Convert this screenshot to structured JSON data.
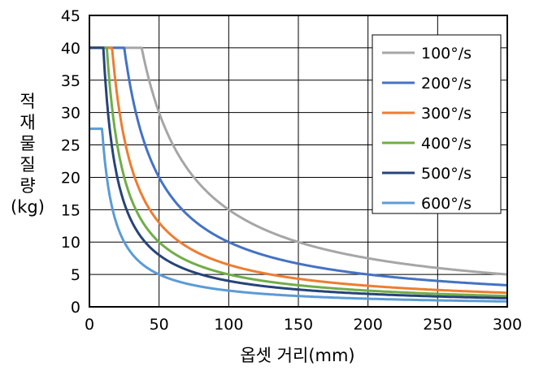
{
  "chart_data": {
    "type": "line",
    "xlabel": "옵셋 거리(mm)",
    "ylabel_lines": [
      "적",
      "재",
      "물",
      "질",
      "량",
      "(kg)"
    ],
    "xlim": [
      0,
      300
    ],
    "ylim": [
      0,
      45
    ],
    "x_ticks": [
      0,
      50,
      100,
      150,
      200,
      250,
      300
    ],
    "y_ticks": [
      0,
      5,
      10,
      15,
      20,
      25,
      30,
      35,
      40,
      45
    ],
    "x_tick_labels": [
      "0",
      "50",
      "100",
      "150",
      "200",
      "250",
      "300"
    ],
    "y_tick_labels": [
      "0",
      "5",
      "10",
      "15",
      "20",
      "25",
      "30",
      "35",
      "40",
      "45"
    ],
    "grid": true,
    "legend_position": "top-right",
    "series": [
      {
        "name": "100°/s",
        "color": "#a6a6a6",
        "cap": 40,
        "k": 1500,
        "x": [
          0,
          30,
          37.5,
          50,
          60,
          75,
          100,
          150,
          200,
          250,
          300
        ],
        "y": [
          40,
          40,
          40,
          30,
          25,
          20,
          15,
          10,
          7.5,
          6,
          5
        ]
      },
      {
        "name": "200°/s",
        "color": "#4472c4",
        "cap": 40,
        "k": 1000,
        "x": [
          0,
          20,
          25,
          40,
          50,
          75,
          100,
          150,
          200,
          300
        ],
        "y": [
          40,
          40,
          40,
          25,
          20,
          13.3,
          10,
          6.7,
          5,
          3.3
        ]
      },
      {
        "name": "300°/s",
        "color": "#ed7d31",
        "cap": 40,
        "k": 650,
        "x": [
          0,
          16,
          25,
          40,
          50,
          75,
          100,
          150,
          200,
          300
        ],
        "y": [
          40,
          40,
          26,
          16.3,
          13,
          8.7,
          6.5,
          4.3,
          3.3,
          2.2
        ]
      },
      {
        "name": "400°/s",
        "color": "#70ad47",
        "cap": 40,
        "k": 500,
        "x": [
          0,
          12.5,
          20,
          30,
          50,
          75,
          100,
          150,
          200,
          300
        ],
        "y": [
          40,
          40,
          25,
          16.7,
          10,
          6.7,
          5,
          3.3,
          2.5,
          1.7
        ]
      },
      {
        "name": "500°/s",
        "color": "#264478",
        "cap": 40,
        "k": 400,
        "x": [
          0,
          10,
          15,
          25,
          50,
          75,
          100,
          150,
          200,
          300
        ],
        "y": [
          40,
          40,
          26.7,
          16,
          8,
          5.3,
          4,
          2.7,
          2,
          1.3
        ]
      },
      {
        "name": "600°/s",
        "color": "#5b9bd5",
        "cap": 27.5,
        "k": 250,
        "x": [
          0,
          3,
          9.1,
          15,
          25,
          50,
          75,
          100,
          150,
          200,
          300
        ],
        "y": [
          27.5,
          27.5,
          27.5,
          16.7,
          10,
          5,
          3.3,
          2.5,
          1.7,
          1.25,
          0.8
        ]
      }
    ]
  }
}
